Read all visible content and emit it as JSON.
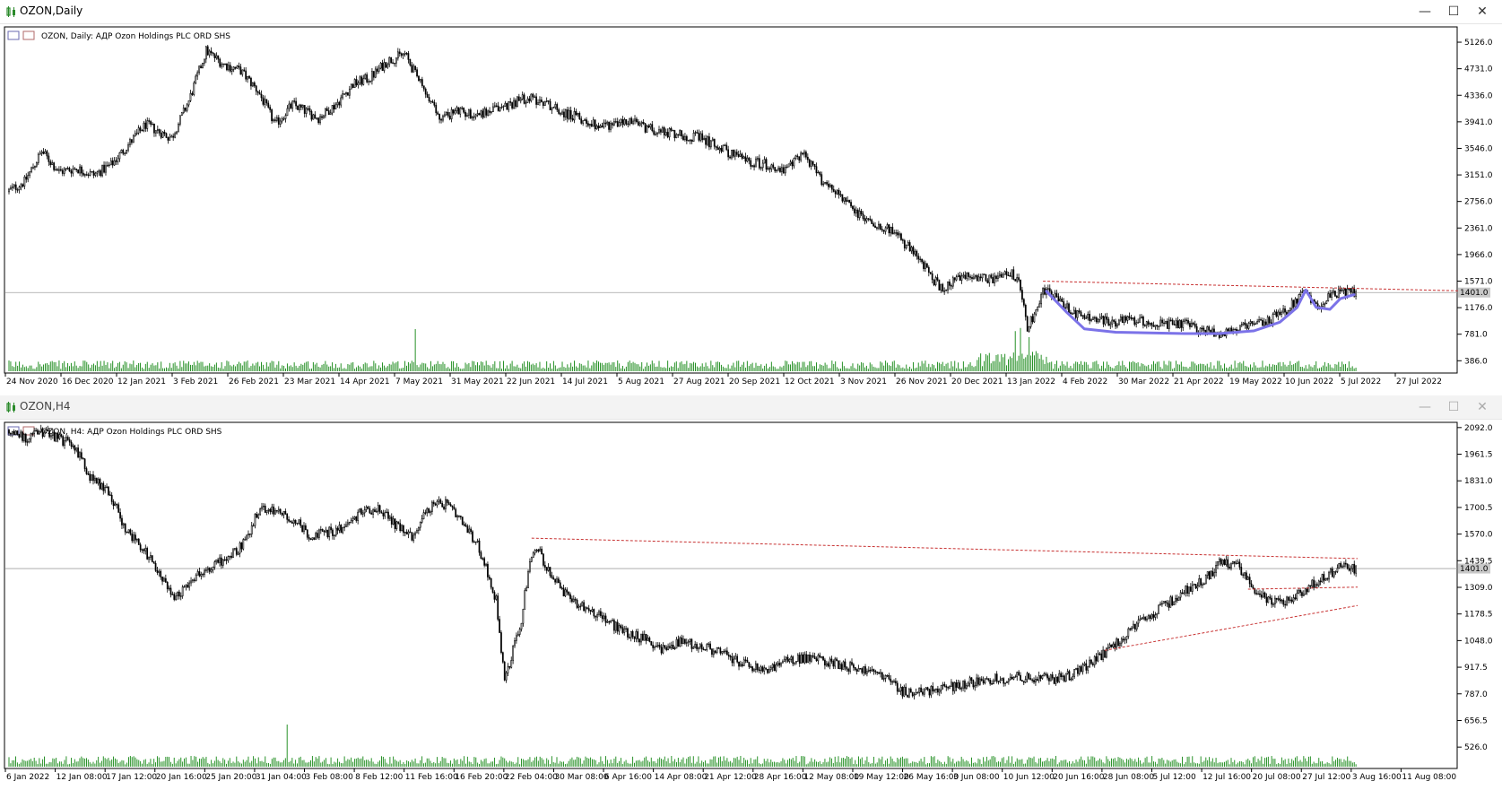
{
  "windows": [
    {
      "title": "OZON,Daily",
      "info": "OZON, Daily:  АДР Ozon Holdings PLC ORD SHS",
      "price_tag": "1401.0",
      "controls": {
        "minimize": "—",
        "maximize": "☐",
        "close": "✕"
      }
    },
    {
      "title": "OZON,H4",
      "info": "OZON, H4:  АДР Ozon Holdings PLC ORD SHS",
      "price_tag": "1401.0",
      "controls": {
        "minimize": "—",
        "maximize": "☐",
        "close": "✕"
      }
    }
  ],
  "colors": {
    "candle": "#000000",
    "volume": "#1e8c1e",
    "trendline": "#c83232",
    "pattern": "#7b72e8",
    "price_line": "#a0a0a0",
    "price_tag_bg": "#c8c8c8"
  },
  "chart_data": [
    {
      "type": "candlestick",
      "symbol": "OZON",
      "timeframe": "Daily",
      "y_ticks": [
        5126.0,
        4731.0,
        4336.0,
        3941.0,
        3546.0,
        3151.0,
        2756.0,
        2361.0,
        1966.0,
        1571.0,
        1176.0,
        781.0,
        386.0
      ],
      "y_range": [
        230,
        5300
      ],
      "current_price": 1401.0,
      "x_labels": [
        "24 Nov 2020",
        "16 Dec 2020",
        "12 Jan 2021",
        "3 Feb 2021",
        "26 Feb 2021",
        "23 Mar 2021",
        "14 Apr 2021",
        "7 May 2021",
        "31 May 2021",
        "22 Jun 2021",
        "14 Jul 2021",
        "5 Aug 2021",
        "27 Aug 2021",
        "20 Sep 2021",
        "12 Oct 2021",
        "3 Nov 2021",
        "26 Nov 2021",
        "20 Dec 2021",
        "13 Jan 2022",
        "4 Feb 2022",
        "30 Mar 2022",
        "21 Apr 2022",
        "19 May 2022",
        "10 Jun 2022",
        "5 Jul 2022",
        "27 Jul 2022"
      ],
      "price_path": [
        [
          0,
          2900
        ],
        [
          10,
          3050
        ],
        [
          20,
          3500
        ],
        [
          30,
          3200
        ],
        [
          40,
          3250
        ],
        [
          50,
          3150
        ],
        [
          60,
          3300
        ],
        [
          70,
          3600
        ],
        [
          80,
          3900
        ],
        [
          95,
          3700
        ],
        [
          105,
          4250
        ],
        [
          115,
          5000
        ],
        [
          125,
          4800
        ],
        [
          135,
          4700
        ],
        [
          145,
          4400
        ],
        [
          155,
          3900
        ],
        [
          165,
          4200
        ],
        [
          180,
          4000
        ],
        [
          190,
          4200
        ],
        [
          200,
          4500
        ],
        [
          210,
          4600
        ],
        [
          220,
          4850
        ],
        [
          230,
          4950
        ],
        [
          240,
          4450
        ],
        [
          250,
          4000
        ],
        [
          260,
          4100
        ],
        [
          270,
          4050
        ],
        [
          280,
          4100
        ],
        [
          290,
          4200
        ],
        [
          300,
          4300
        ],
        [
          310,
          4250
        ],
        [
          320,
          4100
        ],
        [
          330,
          4000
        ],
        [
          340,
          3900
        ],
        [
          350,
          3900
        ],
        [
          360,
          3950
        ],
        [
          370,
          3850
        ],
        [
          380,
          3800
        ],
        [
          390,
          3750
        ],
        [
          400,
          3700
        ],
        [
          410,
          3600
        ],
        [
          420,
          3450
        ],
        [
          430,
          3350
        ],
        [
          440,
          3300
        ],
        [
          450,
          3200
        ],
        [
          460,
          3500
        ],
        [
          470,
          3100
        ],
        [
          480,
          2900
        ],
        [
          490,
          2600
        ],
        [
          500,
          2450
        ],
        [
          510,
          2350
        ],
        [
          520,
          2100
        ],
        [
          530,
          1800
        ],
        [
          540,
          1450
        ],
        [
          550,
          1600
        ],
        [
          560,
          1650
        ],
        [
          570,
          1600
        ],
        [
          580,
          1700
        ],
        [
          586,
          1500
        ],
        [
          590,
          850
        ],
        [
          595,
          1150
        ],
        [
          600,
          1450
        ],
        [
          610,
          1250
        ],
        [
          620,
          1050
        ],
        [
          630,
          1000
        ],
        [
          640,
          950
        ],
        [
          650,
          1000
        ],
        [
          660,
          950
        ],
        [
          670,
          920
        ],
        [
          680,
          930
        ],
        [
          690,
          850
        ],
        [
          700,
          800
        ],
        [
          710,
          850
        ],
        [
          720,
          900
        ],
        [
          730,
          1000
        ],
        [
          740,
          1150
        ],
        [
          750,
          1400
        ],
        [
          756,
          1200
        ],
        [
          760,
          1250
        ],
        [
          770,
          1400
        ],
        [
          780,
          1401
        ]
      ],
      "volume_spikes": [
        [
          235,
          0.9
        ],
        [
          582,
          0.75
        ],
        [
          585,
          0.8
        ],
        [
          590,
          0.6
        ]
      ],
      "resistance_line": {
        "from": [
          598,
          1570
        ],
        "to": [
          850,
          1420
        ]
      },
      "pattern_curve": [
        [
          600,
          1420
        ],
        [
          612,
          1100
        ],
        [
          622,
          860
        ],
        [
          640,
          810
        ],
        [
          660,
          800
        ],
        [
          680,
          790
        ],
        [
          700,
          790
        ],
        [
          720,
          830
        ],
        [
          735,
          960
        ],
        [
          745,
          1180
        ],
        [
          750,
          1440
        ],
        [
          756,
          1180
        ],
        [
          764,
          1150
        ],
        [
          770,
          1310
        ],
        [
          778,
          1370
        ]
      ]
    },
    {
      "type": "candlestick",
      "symbol": "OZON",
      "timeframe": "H4",
      "y_ticks": [
        2092.0,
        1961.5,
        1831.0,
        1700.5,
        1570.0,
        1439.5,
        1309.0,
        1178.5,
        1048.0,
        917.5,
        787.0,
        656.5,
        526.0
      ],
      "y_range": [
        430,
        2100
      ],
      "current_price": 1401.0,
      "x_labels": [
        "6 Jan 2022",
        "12 Jan 08:00",
        "17 Jan 12:00",
        "20 Jan 16:00",
        "25 Jan 20:00",
        "31 Jan 04:00",
        "3 Feb 08:00",
        "8 Feb 12:00",
        "11 Feb 16:00",
        "16 Feb 20:00",
        "22 Feb 04:00",
        "30 Mar 08:00",
        "6 Apr 16:00",
        "14 Apr 08:00",
        "21 Apr 12:00",
        "28 Apr 16:00",
        "12 May 08:00",
        "19 May 12:00",
        "26 May 16:00",
        "3 Jun 08:00",
        "10 Jun 12:00",
        "20 Jun 16:00",
        "28 Jun 08:00",
        "5 Jul 12:00",
        "12 Jul 16:00",
        "20 Jul 08:00",
        "27 Jul 12:00",
        "3 Aug 16:00",
        "11 Aug 08:00"
      ],
      "price_path": [
        [
          0,
          2080
        ],
        [
          10,
          2040
        ],
        [
          20,
          2070
        ],
        [
          30,
          2040
        ],
        [
          40,
          2000
        ],
        [
          50,
          1840
        ],
        [
          60,
          1780
        ],
        [
          70,
          1600
        ],
        [
          80,
          1500
        ],
        [
          90,
          1380
        ],
        [
          100,
          1260
        ],
        [
          110,
          1360
        ],
        [
          120,
          1400
        ],
        [
          130,
          1450
        ],
        [
          140,
          1520
        ],
        [
          150,
          1700
        ],
        [
          160,
          1680
        ],
        [
          170,
          1640
        ],
        [
          180,
          1560
        ],
        [
          190,
          1580
        ],
        [
          200,
          1600
        ],
        [
          210,
          1680
        ],
        [
          220,
          1700
        ],
        [
          230,
          1620
        ],
        [
          240,
          1560
        ],
        [
          250,
          1700
        ],
        [
          260,
          1720
        ],
        [
          270,
          1620
        ],
        [
          280,
          1500
        ],
        [
          290,
          1250
        ],
        [
          295,
          850
        ],
        [
          300,
          1000
        ],
        [
          305,
          1150
        ],
        [
          310,
          1450
        ],
        [
          315,
          1500
        ],
        [
          320,
          1400
        ],
        [
          330,
          1280
        ],
        [
          340,
          1220
        ],
        [
          350,
          1180
        ],
        [
          360,
          1120
        ],
        [
          370,
          1080
        ],
        [
          380,
          1050
        ],
        [
          390,
          1000
        ],
        [
          400,
          1050
        ],
        [
          410,
          1020
        ],
        [
          420,
          1000
        ],
        [
          430,
          960
        ],
        [
          440,
          920
        ],
        [
          450,
          900
        ],
        [
          460,
          940
        ],
        [
          470,
          960
        ],
        [
          480,
          960
        ],
        [
          490,
          940
        ],
        [
          500,
          920
        ],
        [
          510,
          900
        ],
        [
          520,
          880
        ],
        [
          530,
          800
        ],
        [
          540,
          790
        ],
        [
          550,
          810
        ],
        [
          560,
          820
        ],
        [
          570,
          840
        ],
        [
          580,
          860
        ],
        [
          590,
          860
        ],
        [
          600,
          870
        ],
        [
          610,
          860
        ],
        [
          620,
          860
        ],
        [
          630,
          880
        ],
        [
          640,
          920
        ],
        [
          650,
          980
        ],
        [
          660,
          1050
        ],
        [
          670,
          1120
        ],
        [
          680,
          1180
        ],
        [
          690,
          1240
        ],
        [
          700,
          1300
        ],
        [
          710,
          1350
        ],
        [
          720,
          1430
        ],
        [
          730,
          1420
        ],
        [
          740,
          1300
        ],
        [
          750,
          1230
        ],
        [
          760,
          1250
        ],
        [
          770,
          1300
        ],
        [
          780,
          1350
        ],
        [
          790,
          1410
        ],
        [
          800,
          1401
        ]
      ],
      "volume_spikes": [
        [
          165,
          0.9
        ]
      ],
      "resistance_line": {
        "from": [
          310,
          1550
        ],
        "to": [
          800,
          1450
        ]
      },
      "support_line": {
        "from": [
          650,
          1000
        ],
        "to": [
          800,
          1220
        ]
      },
      "flag_line": {
        "from": [
          735,
          1300
        ],
        "to": [
          800,
          1310
        ]
      }
    }
  ]
}
